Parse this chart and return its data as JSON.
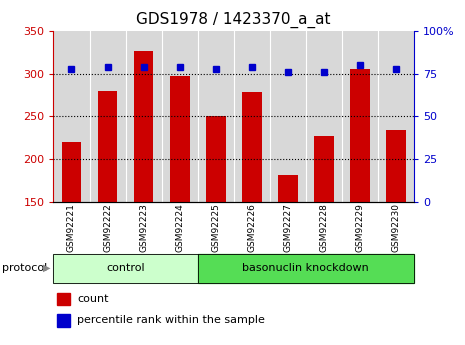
{
  "title": "GDS1978 / 1423370_a_at",
  "samples": [
    "GSM92221",
    "GSM92222",
    "GSM92223",
    "GSM92224",
    "GSM92225",
    "GSM92226",
    "GSM92227",
    "GSM92228",
    "GSM92229",
    "GSM92230"
  ],
  "counts": [
    220,
    280,
    327,
    297,
    250,
    279,
    181,
    227,
    305,
    234
  ],
  "percentile_ranks": [
    78,
    79,
    79,
    79,
    78,
    79,
    76,
    76,
    80,
    78
  ],
  "ylim_left": [
    150,
    350
  ],
  "ylim_right": [
    0,
    100
  ],
  "yticks_left": [
    150,
    200,
    250,
    300,
    350
  ],
  "yticks_right": [
    0,
    25,
    50,
    75,
    100
  ],
  "bar_color": "#cc0000",
  "dot_color": "#0000cc",
  "control_group_count": 4,
  "knockdown_group_count": 6,
  "control_label": "control",
  "knockdown_label": "basonuclin knockdown",
  "protocol_label": "protocol",
  "legend_count_label": "count",
  "legend_percentile_label": "percentile rank within the sample",
  "tick_label_color_left": "#cc0000",
  "tick_label_color_right": "#0000cc",
  "title_fontsize": 11,
  "control_color": "#ccffcc",
  "knockdown_color": "#55dd55",
  "col_bg_color": "#d8d8d8",
  "col_border_color": "#ffffff"
}
